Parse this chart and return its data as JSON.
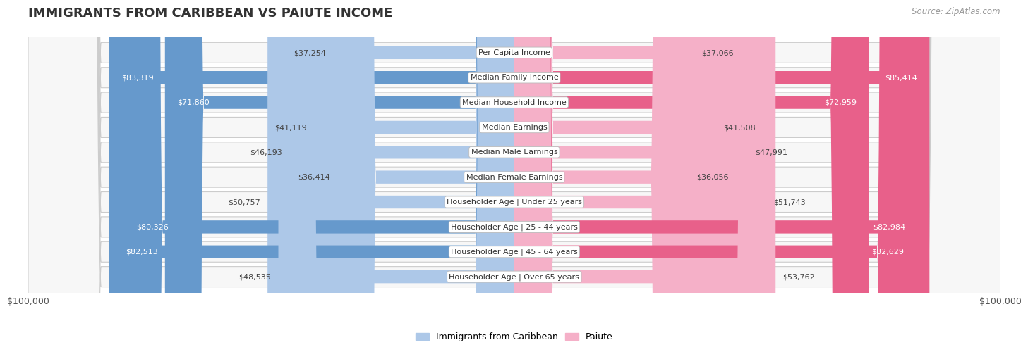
{
  "title": "IMMIGRANTS FROM CARIBBEAN VS PAIUTE INCOME",
  "source": "Source: ZipAtlas.com",
  "categories": [
    "Per Capita Income",
    "Median Family Income",
    "Median Household Income",
    "Median Earnings",
    "Median Male Earnings",
    "Median Female Earnings",
    "Householder Age | Under 25 years",
    "Householder Age | 25 - 44 years",
    "Householder Age | 45 - 64 years",
    "Householder Age | Over 65 years"
  ],
  "caribbean_values": [
    37254,
    83319,
    71860,
    41119,
    46193,
    36414,
    50757,
    80326,
    82513,
    48535
  ],
  "paiute_values": [
    37066,
    85414,
    72959,
    41508,
    47991,
    36056,
    51743,
    82984,
    82629,
    53762
  ],
  "caribbean_color_light": "#adc8e8",
  "caribbean_color_dark": "#6699cc",
  "paiute_color_light": "#f5b0c8",
  "paiute_color_dark": "#e8608a",
  "caribbean_label": "Immigrants from Caribbean",
  "paiute_label": "Paiute",
  "axis_max": 100000,
  "label_left": "$100,000",
  "label_right": "$100,000",
  "title_fontsize": 13,
  "source_fontsize": 8.5,
  "bar_label_fontsize": 8,
  "category_fontsize": 8,
  "inside_label_threshold": 60000
}
